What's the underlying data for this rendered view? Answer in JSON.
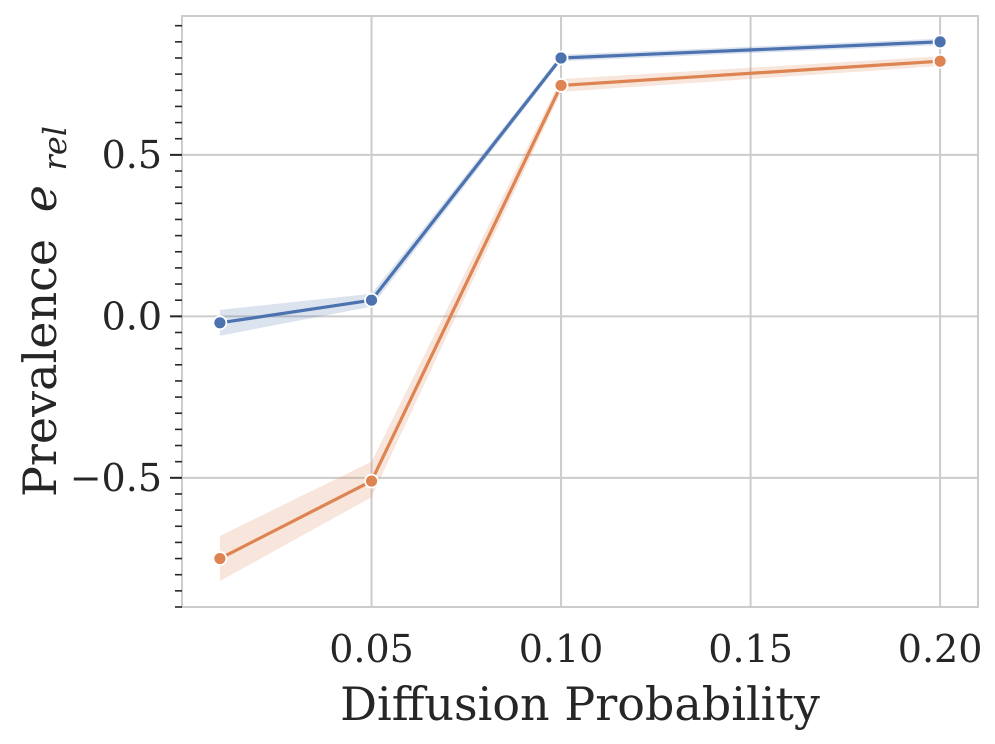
{
  "chart_data": {
    "type": "line",
    "title": "",
    "xlabel": "Diffusion Probability",
    "ylabel": "Prevalence",
    "ylabel_symbol": "e",
    "ylabel_subscript": "rel",
    "xlim": [
      0.0,
      0.21
    ],
    "ylim": [
      -0.9,
      0.93
    ],
    "x_ticks": [
      0.05,
      0.1,
      0.15,
      0.2
    ],
    "x_tick_labels": [
      "0.05",
      "0.10",
      "0.15",
      "0.20"
    ],
    "y_ticks": [
      -0.5,
      0.0,
      0.5
    ],
    "y_tick_labels": [
      "−0.5",
      "0.0",
      "0.5"
    ],
    "grid": true,
    "series": [
      {
        "name": "series-1",
        "color": "#4c72b0",
        "x": [
          0.01,
          0.05,
          0.1,
          0.2
        ],
        "values": [
          -0.02,
          0.05,
          0.8,
          0.85
        ],
        "ci_lower": [
          -0.06,
          0.03,
          0.79,
          0.84
        ],
        "ci_upper": [
          0.02,
          0.07,
          0.81,
          0.86
        ]
      },
      {
        "name": "series-2",
        "color": "#dd8452",
        "x": [
          0.01,
          0.05,
          0.1,
          0.2
        ],
        "values": [
          -0.75,
          -0.51,
          0.715,
          0.79
        ],
        "ci_lower": [
          -0.82,
          -0.56,
          0.695,
          0.775
        ],
        "ci_upper": [
          -0.68,
          -0.45,
          0.735,
          0.805
        ]
      }
    ]
  }
}
